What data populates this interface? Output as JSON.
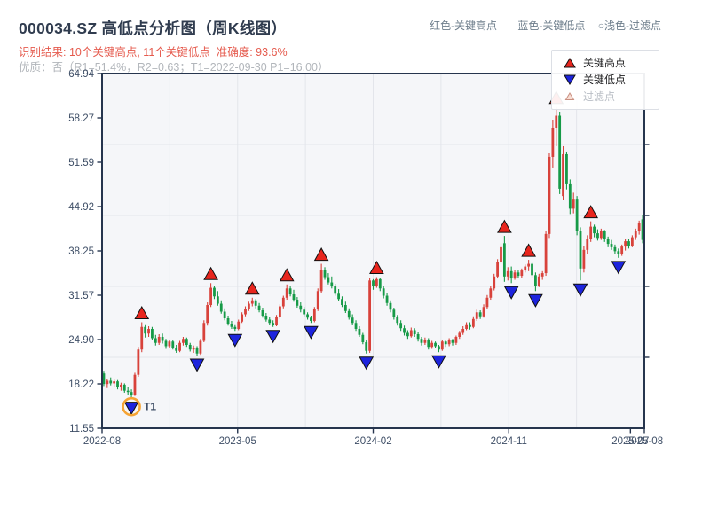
{
  "header": {
    "title": "000034.SZ 高低点分析图（周K线图）",
    "result_line": "识别结果: 10个关键高点, 11个关键低点  准确度: 93.6%",
    "quality_line": "优质：否（R1=51.4%，R2=0.63；T1=2022-09-30 P1=16.00）",
    "legend": {
      "high": "红色-关键高点",
      "low": "蓝色-关键低点",
      "filtered": "○浅色-过滤点"
    }
  },
  "chart_legend": {
    "high": "关键高点",
    "low": "关键低点",
    "filtered": "过滤点"
  },
  "chart_data": {
    "type": "candlestick",
    "symbol": "000034.SZ",
    "interval": "weekly",
    "title": "000034.SZ 高低点分析图（周K线图）",
    "xlabel": "",
    "ylabel": "",
    "num_key_highs": 10,
    "num_key_lows": 11,
    "accuracy": "93.6%",
    "y_axis": {
      "min": 11.55,
      "max": 64.94,
      "tick_labels": [
        "64.94",
        "58.27",
        "51.59",
        "44.92",
        "38.25",
        "31.57",
        "24.90",
        "18.22",
        "11.55"
      ]
    },
    "x_axis": {
      "ticks": [
        {
          "label": "2022-08",
          "week": 0
        },
        {
          "label": "2023-05",
          "week": 39
        },
        {
          "label": "2024-02",
          "week": 78
        },
        {
          "label": "2024-11",
          "week": 117
        },
        {
          "label": "2025-07",
          "week": 152
        },
        {
          "label": "2025-08",
          "week": 156
        }
      ]
    },
    "grid": {
      "x_weeks": [
        19.5,
        39,
        58.5,
        78,
        97.5,
        117,
        136.5
      ],
      "y_prices": [
        54.26,
        43.58,
        32.91,
        22.23
      ]
    },
    "colors": {
      "up": "#d8423b",
      "down": "#169a47",
      "high_marker": "#e8251d",
      "low_marker": "#1d24dd",
      "marker_edge": "#101010",
      "annotation": "#f5a434",
      "plot_bg": "#f5f6f9",
      "gridline": "#e3e5eb",
      "spine": "#26354e"
    },
    "candles": [
      [
        19.8,
        20.2,
        17.9,
        18.2
      ],
      [
        18.2,
        19.0,
        17.6,
        18.7
      ],
      [
        18.7,
        19.2,
        18.0,
        18.3
      ],
      [
        18.3,
        18.9,
        17.7,
        18.6
      ],
      [
        18.6,
        18.8,
        17.4,
        17.7
      ],
      [
        17.7,
        18.4,
        17.2,
        18.1
      ],
      [
        18.1,
        18.3,
        16.9,
        17.2
      ],
      [
        17.2,
        17.8,
        16.6,
        17.0
      ],
      [
        17.0,
        17.4,
        16.0,
        16.6
      ],
      [
        16.6,
        19.9,
        16.4,
        19.6
      ],
      [
        19.6,
        23.8,
        19.3,
        23.4
      ],
      [
        23.4,
        27.5,
        23.0,
        26.8
      ],
      [
        26.8,
        27.2,
        25.2,
        25.8
      ],
      [
        25.8,
        26.9,
        25.3,
        26.5
      ],
      [
        26.5,
        26.8,
        24.8,
        25.1
      ],
      [
        25.1,
        25.6,
        24.0,
        24.4
      ],
      [
        24.4,
        25.7,
        24.1,
        25.3
      ],
      [
        25.3,
        25.8,
        24.3,
        24.7
      ],
      [
        24.7,
        25.0,
        23.5,
        23.9
      ],
      [
        23.9,
        24.9,
        23.6,
        24.6
      ],
      [
        24.6,
        24.8,
        23.4,
        23.7
      ],
      [
        23.7,
        24.1,
        22.9,
        23.2
      ],
      [
        23.2,
        24.7,
        23.0,
        24.4
      ],
      [
        24.4,
        25.3,
        24.0,
        25.0
      ],
      [
        25.0,
        25.2,
        23.8,
        24.1
      ],
      [
        24.1,
        24.4,
        23.1,
        23.4
      ],
      [
        23.4,
        24.0,
        22.9,
        23.7
      ],
      [
        23.7,
        23.9,
        22.5,
        22.8
      ],
      [
        22.8,
        25.0,
        22.6,
        24.7
      ],
      [
        24.7,
        27.8,
        24.5,
        27.4
      ],
      [
        27.4,
        30.5,
        27.0,
        30.1
      ],
      [
        30.1,
        33.4,
        29.8,
        32.7
      ],
      [
        32.7,
        33.0,
        31.0,
        31.4
      ],
      [
        31.4,
        32.2,
        30.0,
        30.3
      ],
      [
        30.3,
        30.8,
        28.8,
        29.1
      ],
      [
        29.1,
        29.6,
        27.8,
        28.1
      ],
      [
        28.1,
        28.5,
        27.0,
        27.3
      ],
      [
        27.3,
        27.7,
        26.5,
        26.8
      ],
      [
        26.8,
        27.2,
        26.2,
        26.5
      ],
      [
        26.5,
        27.9,
        26.3,
        27.6
      ],
      [
        27.6,
        29.0,
        27.4,
        28.7
      ],
      [
        28.7,
        29.9,
        28.4,
        29.5
      ],
      [
        29.5,
        30.6,
        29.2,
        30.3
      ],
      [
        30.3,
        31.2,
        29.9,
        30.8
      ],
      [
        30.8,
        31.0,
        29.6,
        30.0
      ],
      [
        30.0,
        30.4,
        29.0,
        29.3
      ],
      [
        29.3,
        29.7,
        28.2,
        28.5
      ],
      [
        28.5,
        28.9,
        27.6,
        27.9
      ],
      [
        27.9,
        28.3,
        27.1,
        27.4
      ],
      [
        27.4,
        27.8,
        26.8,
        27.1
      ],
      [
        27.1,
        28.6,
        26.9,
        28.3
      ],
      [
        28.3,
        30.2,
        28.0,
        29.9
      ],
      [
        29.9,
        31.5,
        29.6,
        31.2
      ],
      [
        31.2,
        33.2,
        30.9,
        32.6
      ],
      [
        32.6,
        32.9,
        31.4,
        31.7
      ],
      [
        31.7,
        32.4,
        30.6,
        30.9
      ],
      [
        30.9,
        31.3,
        29.7,
        30.0
      ],
      [
        30.0,
        30.5,
        29.0,
        29.4
      ],
      [
        29.4,
        29.8,
        28.4,
        28.7
      ],
      [
        28.7,
        29.0,
        27.9,
        28.2
      ],
      [
        28.2,
        28.5,
        27.4,
        27.7
      ],
      [
        27.7,
        29.8,
        27.5,
        29.5
      ],
      [
        29.5,
        32.6,
        29.2,
        32.2
      ],
      [
        32.2,
        36.3,
        31.9,
        35.4
      ],
      [
        35.4,
        35.8,
        33.9,
        34.3
      ],
      [
        34.3,
        34.9,
        33.2,
        33.5
      ],
      [
        33.5,
        34.4,
        32.6,
        32.9
      ],
      [
        32.9,
        33.3,
        31.5,
        31.8
      ],
      [
        31.8,
        32.5,
        30.7,
        31.0
      ],
      [
        31.0,
        31.4,
        29.8,
        30.1
      ],
      [
        30.1,
        30.6,
        28.9,
        29.2
      ],
      [
        29.2,
        29.6,
        27.9,
        28.2
      ],
      [
        28.2,
        28.7,
        27.1,
        27.4
      ],
      [
        27.4,
        27.8,
        26.2,
        26.5
      ],
      [
        26.5,
        26.9,
        25.3,
        25.6
      ],
      [
        25.6,
        25.9,
        24.2,
        24.5
      ],
      [
        24.5,
        24.8,
        22.8,
        23.2
      ],
      [
        23.2,
        34.2,
        22.9,
        33.8
      ],
      [
        33.8,
        34.0,
        32.4,
        33.0
      ],
      [
        33.0,
        34.3,
        32.7,
        34.0
      ],
      [
        34.0,
        34.2,
        32.2,
        32.6
      ],
      [
        32.6,
        33.0,
        31.1,
        31.5
      ],
      [
        31.5,
        31.9,
        30.0,
        30.4
      ],
      [
        30.4,
        30.8,
        29.0,
        29.4
      ],
      [
        29.4,
        29.7,
        27.9,
        28.3
      ],
      [
        28.3,
        28.6,
        27.0,
        27.4
      ],
      [
        27.4,
        27.8,
        26.2,
        26.6
      ],
      [
        26.6,
        27.0,
        25.5,
        25.9
      ],
      [
        25.9,
        26.3,
        25.0,
        25.4
      ],
      [
        25.4,
        26.7,
        25.2,
        26.3
      ],
      [
        26.3,
        26.6,
        25.3,
        25.7
      ],
      [
        25.7,
        26.0,
        24.6,
        25.0
      ],
      [
        25.0,
        25.3,
        24.0,
        24.4
      ],
      [
        24.4,
        25.2,
        24.1,
        24.9
      ],
      [
        24.9,
        25.1,
        23.4,
        23.8
      ],
      [
        23.8,
        24.7,
        23.5,
        24.4
      ],
      [
        24.4,
        24.6,
        23.6,
        23.9
      ],
      [
        23.9,
        24.1,
        23.0,
        23.4
      ],
      [
        23.4,
        24.9,
        23.2,
        24.6
      ],
      [
        24.6,
        24.8,
        23.8,
        24.2
      ],
      [
        24.2,
        25.1,
        23.9,
        24.9
      ],
      [
        24.9,
        25.0,
        24.0,
        24.4
      ],
      [
        24.4,
        25.5,
        24.1,
        25.3
      ],
      [
        25.3,
        26.2,
        25.0,
        25.9
      ],
      [
        25.9,
        26.9,
        25.6,
        26.5
      ],
      [
        26.5,
        27.5,
        26.3,
        27.2
      ],
      [
        27.2,
        27.5,
        26.4,
        26.8
      ],
      [
        26.8,
        28.4,
        26.6,
        28.0
      ],
      [
        28.0,
        29.4,
        27.7,
        29.0
      ],
      [
        29.0,
        29.3,
        28.0,
        28.4
      ],
      [
        28.4,
        30.2,
        28.2,
        29.8
      ],
      [
        29.8,
        31.6,
        29.5,
        31.2
      ],
      [
        31.2,
        33.0,
        30.9,
        32.6
      ],
      [
        32.6,
        34.8,
        32.3,
        34.4
      ],
      [
        34.4,
        37.0,
        34.1,
        36.6
      ],
      [
        36.6,
        39.4,
        36.3,
        38.8
      ],
      [
        39.4,
        40.5,
        33.6,
        34.4
      ],
      [
        34.4,
        35.8,
        33.8,
        35.2
      ],
      [
        35.2,
        35.9,
        33.4,
        34.1
      ],
      [
        34.1,
        35.4,
        33.9,
        35.0
      ],
      [
        35.0,
        35.3,
        34.1,
        34.5
      ],
      [
        34.5,
        35.6,
        34.2,
        35.3
      ],
      [
        35.3,
        36.2,
        35.0,
        35.9
      ],
      [
        35.9,
        36.9,
        35.2,
        36.3
      ],
      [
        36.3,
        36.5,
        34.2,
        34.6
      ],
      [
        34.6,
        35.0,
        32.2,
        33.0
      ],
      [
        33.0,
        34.8,
        32.8,
        34.4
      ],
      [
        34.4,
        35.2,
        33.9,
        34.9
      ],
      [
        34.9,
        41.2,
        34.5,
        40.8
      ],
      [
        40.8,
        53.0,
        40.2,
        52.4
      ],
      [
        52.4,
        58.0,
        50.8,
        56.8
      ],
      [
        56.8,
        59.9,
        54.0,
        58.6
      ],
      [
        58.6,
        59.2,
        46.8,
        47.6
      ],
      [
        46.5,
        54.0,
        45.9,
        52.8
      ],
      [
        52.8,
        53.2,
        47.5,
        48.4
      ],
      [
        48.4,
        49.0,
        43.8,
        44.6
      ],
      [
        44.6,
        47.0,
        43.9,
        46.1
      ],
      [
        46.1,
        46.5,
        40.6,
        41.2
      ],
      [
        41.2,
        41.8,
        33.8,
        35.6
      ],
      [
        35.6,
        39.0,
        35.0,
        38.4
      ],
      [
        38.4,
        40.6,
        37.8,
        40.1
      ],
      [
        40.1,
        42.7,
        39.6,
        41.9
      ],
      [
        41.9,
        42.2,
        40.3,
        40.9
      ],
      [
        40.9,
        41.5,
        39.8,
        40.2
      ],
      [
        40.2,
        41.6,
        39.9,
        41.2
      ],
      [
        41.2,
        41.4,
        39.6,
        40.0
      ],
      [
        40.0,
        40.4,
        38.8,
        39.3
      ],
      [
        39.3,
        39.9,
        38.4,
        38.8
      ],
      [
        38.8,
        39.2,
        37.8,
        38.2
      ],
      [
        38.2,
        38.6,
        37.2,
        37.8
      ],
      [
        37.8,
        39.2,
        37.5,
        38.9
      ],
      [
        38.9,
        40.0,
        38.3,
        39.7
      ],
      [
        39.7,
        40.1,
        38.6,
        39.0
      ],
      [
        39.0,
        40.6,
        38.8,
        40.3
      ],
      [
        40.3,
        41.6,
        39.9,
        41.2
      ],
      [
        41.2,
        42.8,
        40.7,
        42.5
      ],
      [
        43.0,
        43.6,
        39.4,
        39.9
      ]
    ],
    "key_highs": [
      {
        "week": 11,
        "price": 27.5
      },
      {
        "week": 31,
        "price": 33.4
      },
      {
        "week": 43,
        "price": 31.2
      },
      {
        "week": 53,
        "price": 33.2
      },
      {
        "week": 63,
        "price": 36.3
      },
      {
        "week": 79,
        "price": 34.3
      },
      {
        "week": 116,
        "price": 40.5
      },
      {
        "week": 123,
        "price": 36.9
      },
      {
        "week": 131,
        "price": 59.9
      },
      {
        "week": 141,
        "price": 42.7
      }
    ],
    "key_lows": [
      {
        "week": 8,
        "price": 16.0
      },
      {
        "week": 27,
        "price": 22.5
      },
      {
        "week": 38,
        "price": 26.2
      },
      {
        "week": 49,
        "price": 26.8
      },
      {
        "week": 60,
        "price": 27.4
      },
      {
        "week": 76,
        "price": 22.8
      },
      {
        "week": 97,
        "price": 23.0
      },
      {
        "week": 118,
        "price": 33.4
      },
      {
        "week": 125,
        "price": 32.2
      },
      {
        "week": 138,
        "price": 33.8
      },
      {
        "week": 149,
        "price": 37.2
      }
    ],
    "annotation": {
      "label": "T1",
      "date": "2022-09-30",
      "week": 8,
      "price": 16.0
    }
  }
}
